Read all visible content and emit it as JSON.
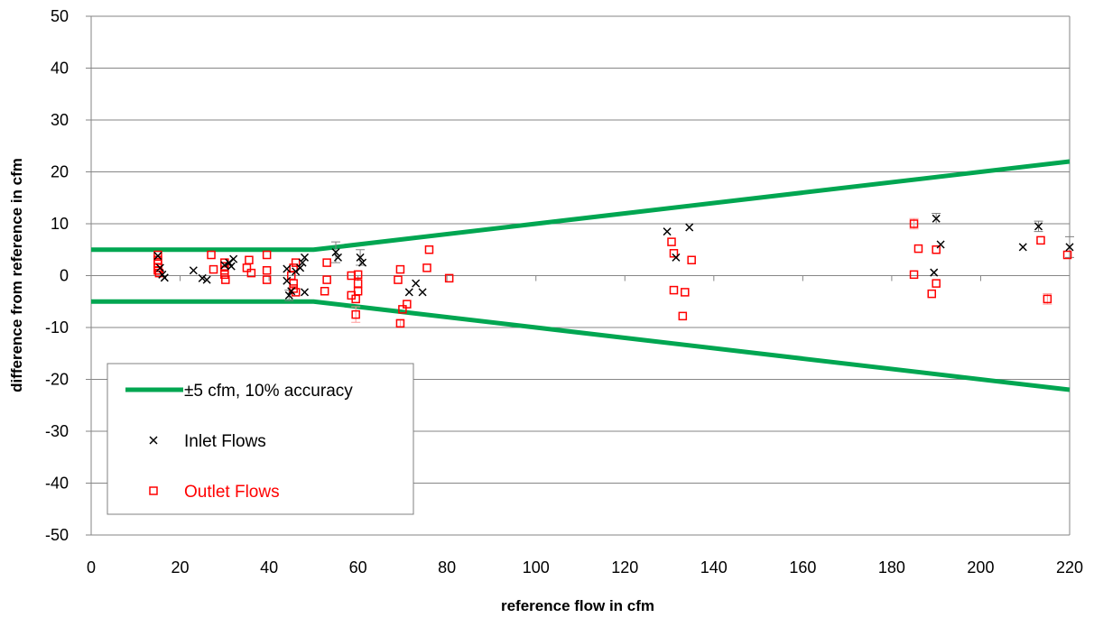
{
  "chart_data": {
    "type": "scatter",
    "title": "",
    "xlabel": "reference flow in cfm",
    "ylabel": "difference from reference  in cfm",
    "xlim": [
      0,
      220
    ],
    "ylim": [
      -50,
      50
    ],
    "x_ticks": [
      0,
      20,
      40,
      60,
      80,
      100,
      120,
      140,
      160,
      180,
      200,
      220
    ],
    "y_ticks": [
      -50,
      -40,
      -30,
      -20,
      -10,
      0,
      10,
      20,
      30,
      40,
      50
    ],
    "x_tick_labels": [
      "0",
      "20",
      "40",
      "60",
      "80",
      "100",
      "120",
      "140",
      "160",
      "180",
      "200",
      "220"
    ],
    "y_tick_labels": [
      "-50",
      "-40",
      "-30",
      "-20",
      "-10",
      "0",
      "10",
      "20",
      "30",
      "40",
      "50"
    ],
    "grid": "horizontal",
    "legend_position": "bottom-left",
    "series": [
      {
        "name": "±5 cfm, 10% accuracy",
        "kind": "line",
        "color": "#00a651",
        "segments": [
          [
            [
              0,
              5
            ],
            [
              50,
              5
            ],
            [
              220,
              22
            ]
          ],
          [
            [
              0,
              -5
            ],
            [
              50,
              -5
            ],
            [
              220,
              -22
            ]
          ]
        ]
      },
      {
        "name": "Inlet Flows",
        "kind": "marker-x",
        "color": "#000000",
        "error_bar_color": "#7f7f7f",
        "points": [
          [
            15,
            3.8
          ],
          [
            15.5,
            1.5
          ],
          [
            16,
            0.2
          ],
          [
            16.5,
            -0.4
          ],
          [
            23,
            1
          ],
          [
            25,
            -0.5
          ],
          [
            26,
            -0.8
          ],
          [
            30,
            2
          ],
          [
            31,
            2.5
          ],
          [
            31.5,
            1.8
          ],
          [
            32,
            3.2
          ],
          [
            44,
            1.3
          ],
          [
            44,
            -1
          ],
          [
            44.5,
            -3.8
          ],
          [
            45,
            -3
          ],
          [
            46,
            0.8
          ],
          [
            47,
            1.5
          ],
          [
            47.5,
            2.5
          ],
          [
            48,
            3.5
          ],
          [
            48,
            -3.2
          ],
          [
            55,
            4.5
          ],
          [
            55.5,
            3.5
          ],
          [
            60.5,
            3.5
          ],
          [
            61,
            2.5
          ],
          [
            71.5,
            -3.2
          ],
          [
            73,
            -1.5
          ],
          [
            74.5,
            -3.2
          ],
          [
            129.5,
            8.5
          ],
          [
            131.5,
            3.5
          ],
          [
            134.5,
            9.3
          ],
          [
            189.5,
            0.6
          ],
          [
            190,
            11
          ],
          [
            191,
            6
          ],
          [
            209.5,
            5.5
          ],
          [
            213,
            9.5
          ],
          [
            220,
            5.5
          ]
        ],
        "error_bars": [
          [
            55,
            4.5,
            2
          ],
          [
            60.5,
            3.5,
            1.5
          ],
          [
            190,
            11,
            1
          ],
          [
            213,
            9.5,
            1
          ],
          [
            220,
            5.5,
            2
          ],
          [
            44.5,
            -3.8,
            1
          ]
        ]
      },
      {
        "name": "Outlet Flows",
        "kind": "marker-square",
        "color": "#ff0000",
        "error_bar_color": "#ff9999",
        "points": [
          [
            15,
            4
          ],
          [
            15,
            3
          ],
          [
            15,
            2.3
          ],
          [
            15,
            1.5
          ],
          [
            15,
            1
          ],
          [
            15.3,
            0.5
          ],
          [
            27,
            4
          ],
          [
            27.5,
            1.2
          ],
          [
            30,
            2.5
          ],
          [
            30,
            1.8
          ],
          [
            30,
            1
          ],
          [
            30,
            0.2
          ],
          [
            30.2,
            -0.8
          ],
          [
            35,
            1.5
          ],
          [
            35.5,
            3
          ],
          [
            36,
            0.5
          ],
          [
            39.5,
            4
          ],
          [
            39.5,
            1
          ],
          [
            39.5,
            -0.8
          ],
          [
            45,
            0
          ],
          [
            45.5,
            1.5
          ],
          [
            45.5,
            -1.5
          ],
          [
            45.5,
            -2.5
          ],
          [
            46,
            -3.2
          ],
          [
            46,
            2.5
          ],
          [
            52.5,
            -3
          ],
          [
            53,
            -0.8
          ],
          [
            53,
            2.5
          ],
          [
            58.5,
            0
          ],
          [
            58.5,
            -3.8
          ],
          [
            59.5,
            -4.5
          ],
          [
            59.5,
            -7.5
          ],
          [
            60,
            0.2
          ],
          [
            60,
            -1.5
          ],
          [
            60,
            -3
          ],
          [
            69,
            -0.8
          ],
          [
            69.5,
            1.2
          ],
          [
            69.5,
            -9.2
          ],
          [
            70,
            -6.5
          ],
          [
            71,
            -5.5
          ],
          [
            75.5,
            1.5
          ],
          [
            76,
            5
          ],
          [
            80.5,
            -0.5
          ],
          [
            130.5,
            6.5
          ],
          [
            131,
            4.3
          ],
          [
            131,
            -2.8
          ],
          [
            133,
            -7.8
          ],
          [
            133.5,
            -3.2
          ],
          [
            135,
            3
          ],
          [
            185,
            10
          ],
          [
            185,
            0.2
          ],
          [
            186,
            5.2
          ],
          [
            189,
            -3.5
          ],
          [
            190,
            5
          ],
          [
            190,
            -1.5
          ],
          [
            213.5,
            6.8
          ],
          [
            215,
            -4.5
          ],
          [
            219.5,
            4
          ]
        ],
        "error_bars": [
          [
            59.5,
            -7.5,
            1.5
          ],
          [
            185,
            10,
            1
          ],
          [
            215,
            -4.5,
            1
          ],
          [
            69.5,
            -9.2,
            0.6
          ]
        ]
      }
    ]
  }
}
